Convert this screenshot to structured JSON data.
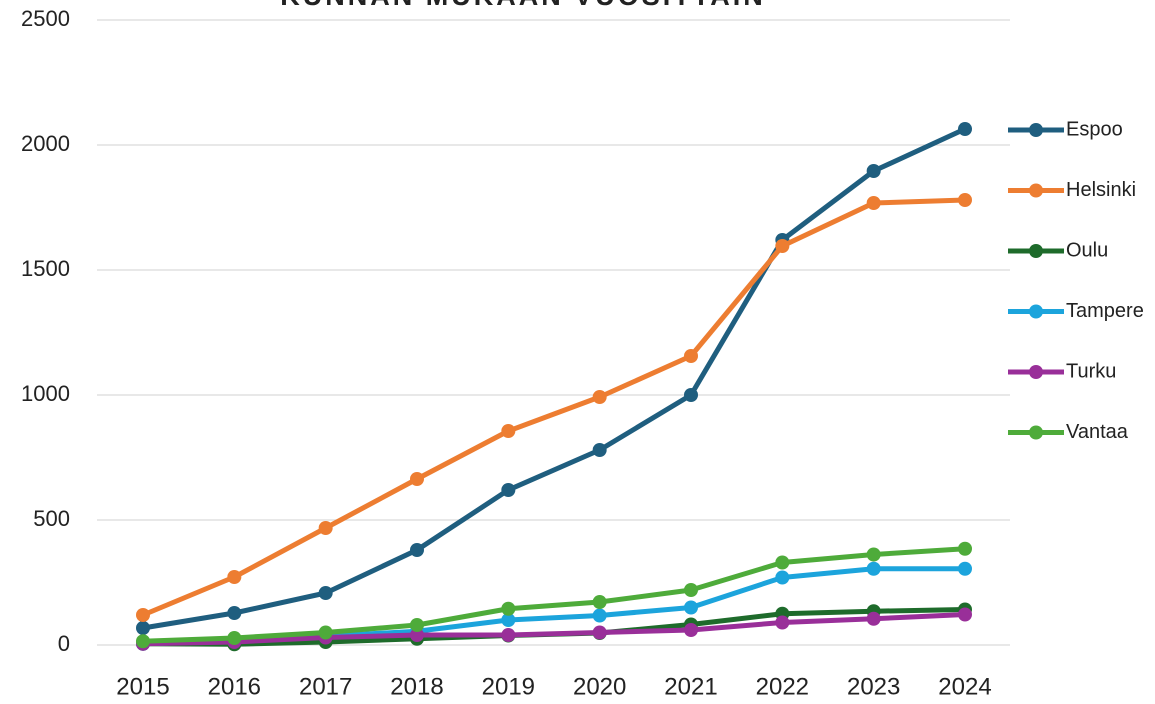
{
  "chart_data": {
    "type": "line",
    "title": "KUNNAN MUKAAN VUOSITTAIN",
    "categories": [
      "2015",
      "2016",
      "2017",
      "2018",
      "2019",
      "2020",
      "2021",
      "2022",
      "2023",
      "2024"
    ],
    "series": [
      {
        "name": "Espoo",
        "color": "#1f5e7f",
        "values": [
          68,
          128,
          208,
          380,
          620,
          780,
          1000,
          1620,
          1896,
          2064
        ]
      },
      {
        "name": "Helsinki",
        "color": "#ed7d31",
        "values": [
          120,
          272,
          468,
          664,
          856,
          992,
          1156,
          1596,
          1768,
          1780
        ]
      },
      {
        "name": "Oulu",
        "color": "#1e6b2b",
        "values": [
          5,
          3,
          12,
          25,
          38,
          48,
          82,
          125,
          135,
          142
        ]
      },
      {
        "name": "Tampere",
        "color": "#1ca4dc",
        "values": [
          5,
          15,
          35,
          55,
          100,
          118,
          150,
          270,
          305,
          305
        ]
      },
      {
        "name": "Turku",
        "color": "#992f99",
        "values": [
          5,
          12,
          30,
          40,
          40,
          50,
          60,
          90,
          105,
          122
        ]
      },
      {
        "name": "Vantaa",
        "color": "#4eab3a",
        "values": [
          15,
          28,
          50,
          80,
          145,
          172,
          220,
          330,
          362,
          385
        ]
      }
    ],
    "ylim": [
      0,
      2500
    ],
    "yticks": [
      0,
      500,
      1000,
      1500,
      2000,
      2500
    ],
    "grid": true,
    "legend": "right"
  }
}
